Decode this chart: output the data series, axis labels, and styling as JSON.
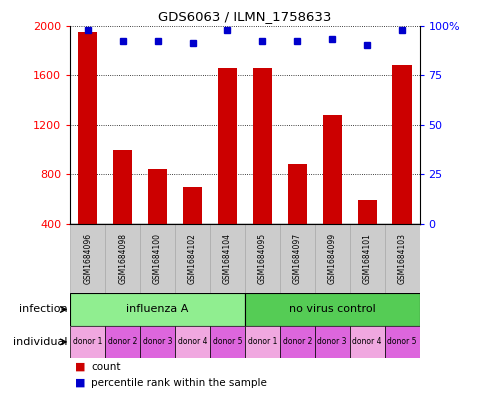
{
  "title": "GDS6063 / ILMN_1758633",
  "samples": [
    "GSM1684096",
    "GSM1684098",
    "GSM1684100",
    "GSM1684102",
    "GSM1684104",
    "GSM1684095",
    "GSM1684097",
    "GSM1684099",
    "GSM1684101",
    "GSM1684103"
  ],
  "counts": [
    1950,
    1000,
    840,
    700,
    1660,
    1660,
    880,
    1280,
    590,
    1680
  ],
  "percentiles": [
    98,
    92,
    92,
    91,
    98,
    92,
    92,
    93,
    90,
    98
  ],
  "ylim_left": [
    400,
    2000
  ],
  "ylim_right": [
    0,
    100
  ],
  "yticks_left": [
    400,
    800,
    1200,
    1600,
    2000
  ],
  "yticks_right": [
    0,
    25,
    50,
    75,
    100
  ],
  "infection_groups": [
    {
      "label": "influenza A",
      "start": 0,
      "end": 5,
      "color": "#90ee90"
    },
    {
      "label": "no virus control",
      "start": 5,
      "end": 10,
      "color": "#55cc55"
    }
  ],
  "individual_labels": [
    "donor 1",
    "donor 2",
    "donor 3",
    "donor 4",
    "donor 5",
    "donor 1",
    "donor 2",
    "donor 3",
    "donor 4",
    "donor 5"
  ],
  "individual_colors": [
    "#f0a8e0",
    "#dd66dd",
    "#dd66dd",
    "#f0a8e0",
    "#dd66dd",
    "#f0a8e0",
    "#dd66dd",
    "#dd66dd",
    "#f0a8e0",
    "#dd66dd"
  ],
  "bar_color": "#cc0000",
  "dot_color": "#0000cc",
  "bar_width": 0.55,
  "sample_bg_color": "#cccccc",
  "legend_count_color": "#cc0000",
  "legend_pct_color": "#0000cc",
  "right_tick_labels": [
    "0",
    "25",
    "50",
    "75",
    "100%"
  ]
}
